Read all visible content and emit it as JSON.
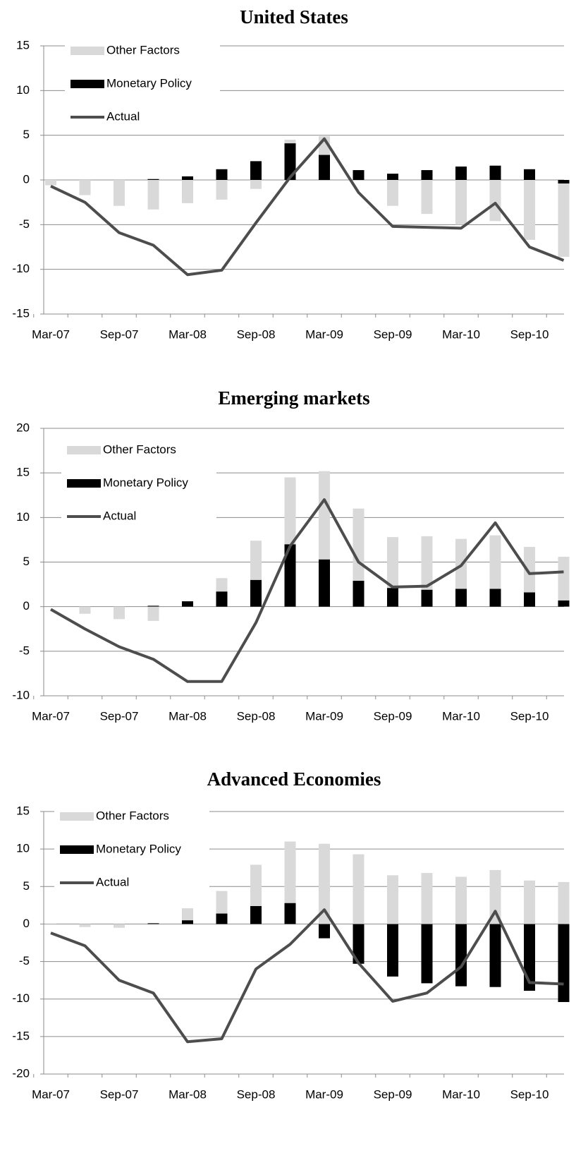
{
  "chart_data": [
    {
      "type": "bar",
      "stacked": true,
      "title": "United States",
      "categories": [
        "Mar-07",
        null,
        "Sep-07",
        null,
        "Mar-08",
        null,
        "Sep-08",
        null,
        "Mar-09",
        null,
        "Sep-09",
        null,
        "Mar-10",
        null,
        "Sep-10",
        null
      ],
      "series": [
        {
          "name": "Other Factors",
          "type": "bar",
          "color": "#d9d9d9",
          "values": [
            -0.6,
            -1.7,
            -2.9,
            -3.3,
            -2.6,
            -2.2,
            -1.0,
            0.4,
            2.1,
            0,
            -2.9,
            -3.8,
            -5.0,
            -4.6,
            -6.7,
            -8.2
          ]
        },
        {
          "name": "Monetary Policy",
          "type": "bar",
          "color": "#000000",
          "values": [
            0,
            0,
            0,
            0.1,
            0.4,
            1.2,
            2.1,
            4.1,
            2.8,
            1.1,
            0.7,
            1.1,
            1.5,
            1.6,
            1.2,
            -0.4
          ]
        },
        {
          "name": "Actual",
          "type": "line",
          "color": "#4d4d4d",
          "values": [
            -0.7,
            -2.5,
            -5.9,
            -7.3,
            -10.6,
            -10.1,
            -4.8,
            0.3,
            4.6,
            -1.4,
            -5.2,
            -5.3,
            -5.4,
            -2.6,
            -7.5,
            -9.0
          ]
        }
      ],
      "ylim": [
        -15,
        15
      ],
      "yticks": [
        -15,
        -10,
        -5,
        0,
        5,
        10,
        15
      ],
      "grid": true,
      "legend": "upper-left"
    },
    {
      "type": "bar",
      "stacked": true,
      "title": "Emerging markets",
      "categories": [
        "Mar-07",
        null,
        "Sep-07",
        null,
        "Mar-08",
        null,
        "Sep-08",
        null,
        "Mar-09",
        null,
        "Sep-09",
        null,
        "Mar-10",
        null,
        "Sep-10",
        null
      ],
      "series": [
        {
          "name": "Other Factors",
          "type": "bar",
          "color": "#d9d9d9",
          "values": [
            0,
            -0.8,
            -1.4,
            -1.6,
            0,
            1.5,
            4.4,
            7.5,
            9.9,
            8.1,
            5.7,
            6.0,
            5.6,
            6.0,
            5.1,
            4.9
          ]
        },
        {
          "name": "Monetary Policy",
          "type": "bar",
          "color": "#000000",
          "values": [
            0,
            0,
            0,
            0.1,
            0.6,
            1.7,
            3.0,
            7.0,
            5.3,
            2.9,
            2.1,
            1.9,
            2.0,
            2.0,
            1.6,
            0.7
          ]
        },
        {
          "name": "Actual",
          "type": "line",
          "color": "#4d4d4d",
          "values": [
            -0.3,
            -2.5,
            -4.5,
            -5.9,
            -8.4,
            -8.4,
            -1.8,
            6.8,
            12.0,
            5.0,
            2.2,
            2.3,
            4.6,
            9.4,
            3.7,
            3.9
          ]
        }
      ],
      "ylim": [
        -10,
        20
      ],
      "yticks": [
        -10,
        -5,
        0,
        5,
        10,
        15,
        20
      ],
      "grid": true,
      "legend": "upper-left"
    },
    {
      "type": "bar",
      "stacked": true,
      "title": "Advanced Economies",
      "categories": [
        "Mar-07",
        null,
        "Sep-07",
        null,
        "Mar-08",
        null,
        "Sep-08",
        null,
        "Mar-09",
        null,
        "Sep-09",
        null,
        "Mar-10",
        null,
        "Sep-10",
        null
      ],
      "series": [
        {
          "name": "Other Factors",
          "type": "bar",
          "color": "#d9d9d9",
          "values": [
            -0.1,
            -0.4,
            -0.5,
            0,
            1.6,
            3.0,
            5.5,
            8.2,
            10.7,
            9.3,
            6.5,
            6.8,
            6.3,
            7.2,
            5.8,
            5.6
          ]
        },
        {
          "name": "Monetary Policy",
          "type": "bar",
          "color": "#000000",
          "values": [
            0,
            0,
            0,
            0.1,
            0.5,
            1.4,
            2.4,
            2.8,
            -1.9,
            -5.3,
            -7.0,
            -7.9,
            -8.3,
            -8.4,
            -8.9,
            -10.4
          ]
        },
        {
          "name": "Actual",
          "type": "line",
          "color": "#4d4d4d",
          "values": [
            -1.2,
            -2.9,
            -7.5,
            -9.2,
            -15.7,
            -15.3,
            -6.0,
            -2.7,
            1.9,
            -5.2,
            -10.3,
            -9.2,
            -5.7,
            1.7,
            -7.8,
            -8.0
          ]
        }
      ],
      "ylim": [
        -20,
        15
      ],
      "yticks": [
        -20,
        -15,
        -10,
        -5,
        0,
        5,
        10,
        15
      ],
      "grid": true,
      "legend": "upper-left"
    }
  ]
}
